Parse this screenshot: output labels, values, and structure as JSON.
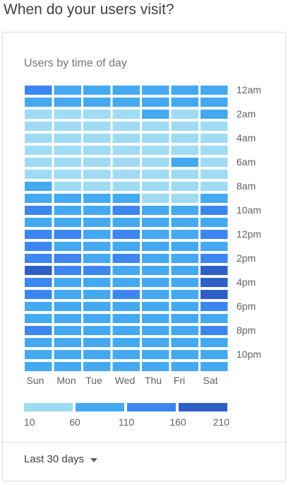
{
  "page": {
    "title": "When do your users visit?"
  },
  "card": {
    "range_label": "Last 30 days"
  },
  "colors": {
    "level1": "#9fdcf3",
    "level2": "#44a9f0",
    "level3": "#3d86ef",
    "level4": "#2e5fc6"
  },
  "chart_data": {
    "type": "heatmap",
    "title": "Users by time of day",
    "days": [
      "Sun",
      "Mon",
      "Tue",
      "Wed",
      "Thu",
      "Fri",
      "Sat"
    ],
    "hour_labels": [
      "12am",
      "2am",
      "4am",
      "6am",
      "8am",
      "10am",
      "12pm",
      "2pm",
      "4pm",
      "6pm",
      "8pm",
      "10pm"
    ],
    "hours": [
      "12am",
      "1am",
      "2am",
      "3am",
      "4am",
      "5am",
      "6am",
      "7am",
      "8am",
      "9am",
      "10am",
      "11am",
      "12pm",
      "1pm",
      "2pm",
      "3pm",
      "4pm",
      "5pm",
      "6pm",
      "7pm",
      "8pm",
      "9pm",
      "10pm",
      "11pm"
    ],
    "legend": {
      "ticks": [
        "10",
        "60",
        "110",
        "160",
        "210"
      ],
      "bins": [
        [
          10,
          60
        ],
        [
          60,
          110
        ],
        [
          110,
          160
        ],
        [
          160,
          210
        ]
      ]
    },
    "values": [
      [
        120,
        90,
        85,
        85,
        90,
        90,
        90
      ],
      [
        85,
        80,
        80,
        80,
        60,
        80,
        85
      ],
      [
        50,
        50,
        50,
        50,
        85,
        50,
        85
      ],
      [
        45,
        45,
        45,
        45,
        45,
        45,
        45
      ],
      [
        40,
        40,
        40,
        40,
        40,
        40,
        40
      ],
      [
        40,
        40,
        40,
        40,
        40,
        40,
        40
      ],
      [
        40,
        40,
        40,
        40,
        40,
        90,
        40
      ],
      [
        40,
        40,
        40,
        40,
        40,
        40,
        40
      ],
      [
        85,
        45,
        45,
        45,
        45,
        45,
        40
      ],
      [
        90,
        90,
        90,
        90,
        50,
        50,
        90
      ],
      [
        120,
        95,
        95,
        120,
        95,
        95,
        120
      ],
      [
        100,
        95,
        95,
        95,
        95,
        95,
        95
      ],
      [
        120,
        120,
        100,
        120,
        100,
        100,
        120
      ],
      [
        110,
        95,
        95,
        95,
        95,
        95,
        100
      ],
      [
        120,
        120,
        95,
        120,
        95,
        95,
        120
      ],
      [
        170,
        120,
        120,
        95,
        95,
        95,
        170
      ],
      [
        120,
        95,
        95,
        95,
        95,
        95,
        170
      ],
      [
        120,
        95,
        95,
        120,
        95,
        95,
        175
      ],
      [
        100,
        95,
        95,
        95,
        95,
        95,
        120
      ],
      [
        100,
        95,
        95,
        95,
        95,
        95,
        100
      ],
      [
        120,
        95,
        95,
        95,
        95,
        95,
        120
      ],
      [
        95,
        95,
        95,
        95,
        95,
        95,
        95
      ],
      [
        95,
        95,
        95,
        95,
        95,
        95,
        95
      ],
      [
        95,
        95,
        95,
        95,
        95,
        95,
        95
      ]
    ]
  }
}
